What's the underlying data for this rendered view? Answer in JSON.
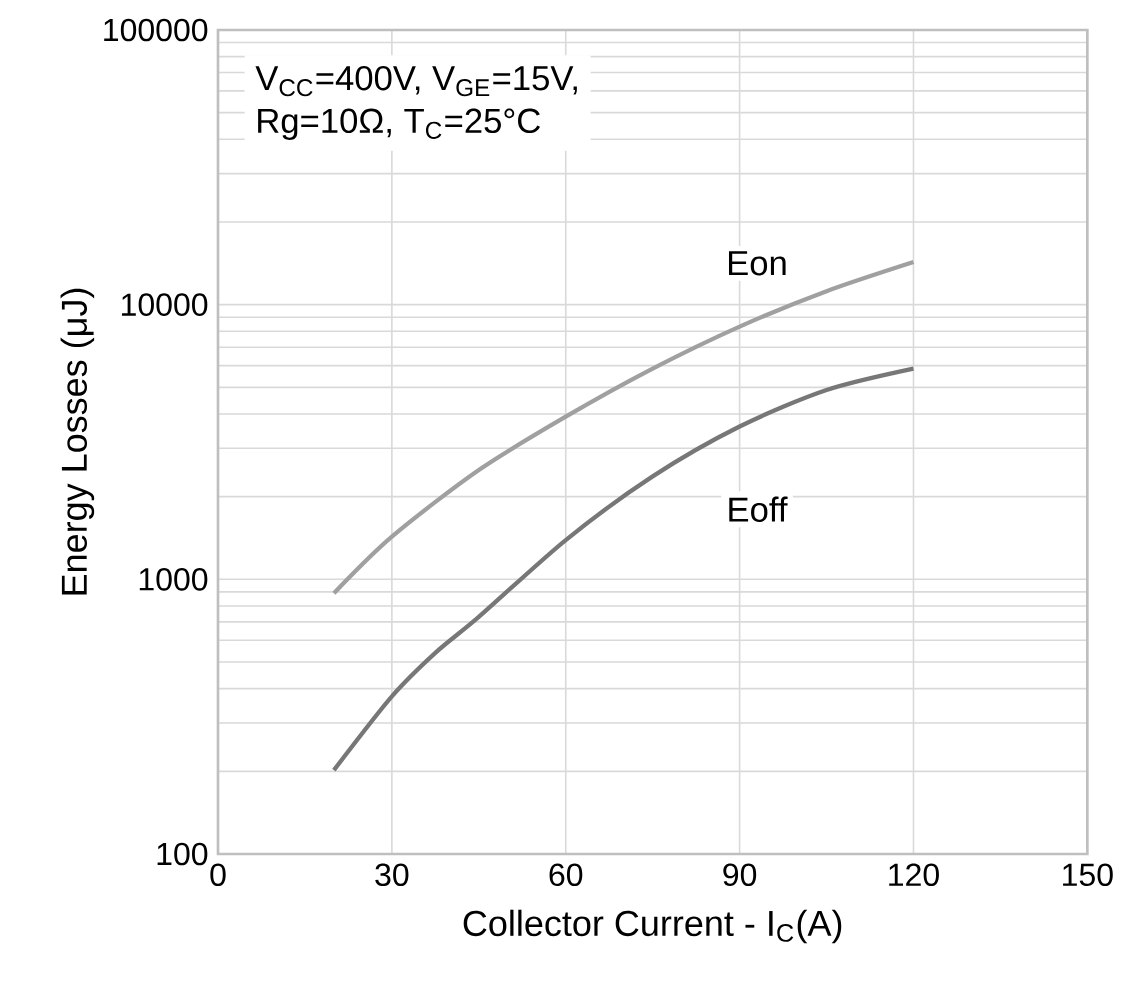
{
  "chart_data": {
    "type": "line",
    "series": [
      {
        "name": "Eon",
        "color": "#a0a0a0",
        "x": [
          20,
          30,
          45,
          60,
          75,
          90,
          105,
          120
        ],
        "values": [
          890,
          1430,
          2500,
          3910,
          5850,
          8320,
          11200,
          14300
        ]
      },
      {
        "name": "Eoff",
        "color": "#777777",
        "x": [
          20,
          30,
          37.5,
          45,
          60,
          75,
          90,
          105,
          120
        ],
        "values": [
          202,
          375,
          540,
          730,
          1390,
          2370,
          3600,
          4890,
          5850
        ]
      }
    ],
    "xlabel": "Collector Current - I$_{C}$(A)",
    "ylabel": "Energy Losses (μJ)",
    "annotations": [
      "V$_{CC}$=400V, V$_{GE}$=15V,",
      "Rg=10Ω, T$_{C}$=25°C"
    ],
    "xlim": [
      0,
      150
    ],
    "xticks": [
      0,
      30,
      60,
      90,
      120,
      150
    ],
    "ylim": [
      100,
      100000
    ],
    "yticks": [
      100,
      1000,
      10000,
      100000
    ],
    "log": "y",
    "grid": true,
    "marker": "none",
    "line_style": "solid"
  }
}
